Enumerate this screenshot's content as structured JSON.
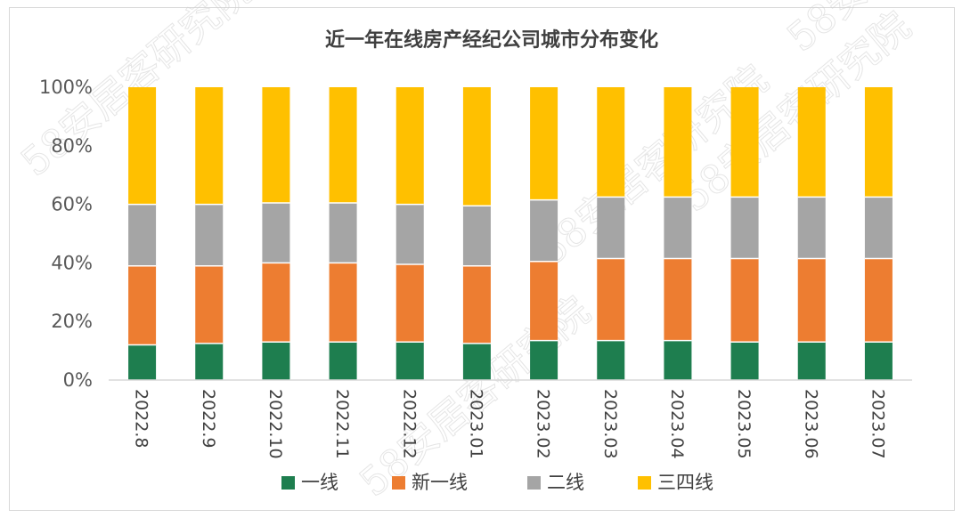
{
  "chart_data": {
    "type": "bar",
    "stacked": true,
    "title": "近一年在线房产经纪公司城市分布变化",
    "categories": [
      "2022.8",
      "2022.9",
      "2022.10",
      "2022.11",
      "2022.12",
      "2023.01",
      "2023.02",
      "2023.03",
      "2023.04",
      "2023.05",
      "2023.06",
      "2023.07"
    ],
    "series": [
      {
        "name": "一线",
        "color": "#1e7e4f",
        "values": [
          12,
          12.5,
          13,
          13,
          13,
          12.5,
          13.5,
          13.5,
          13.5,
          13,
          13,
          13
        ]
      },
      {
        "name": "新一线",
        "color": "#ed7d31",
        "values": [
          27,
          26.5,
          27,
          27,
          26.5,
          26.5,
          27,
          28,
          28,
          28.5,
          28.5,
          28.5
        ]
      },
      {
        "name": "二线",
        "color": "#a5a5a5",
        "values": [
          21,
          21,
          20.5,
          20.5,
          20.5,
          20.5,
          21,
          21,
          21,
          21,
          21,
          21
        ]
      },
      {
        "name": "三四线",
        "color": "#ffc000",
        "values": [
          40,
          40,
          39.5,
          39.5,
          40,
          40.5,
          38.5,
          37.5,
          37.5,
          37.5,
          37.5,
          37.5
        ]
      }
    ],
    "ylim": [
      0,
      100
    ],
    "yticks": [
      "0%",
      "20%",
      "40%",
      "60%",
      "80%",
      "100%"
    ],
    "legend": "bottom",
    "grid": false
  },
  "watermark": "58安居客研究院"
}
